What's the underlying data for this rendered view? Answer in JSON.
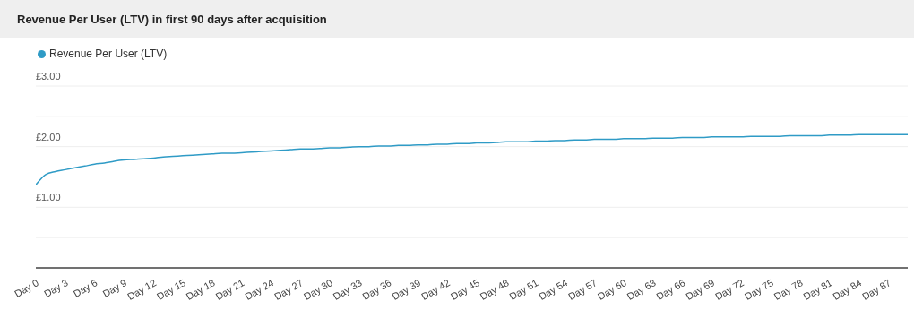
{
  "chart_data": {
    "type": "line",
    "title": "Revenue Per User (LTV) in first 90 days after acquisition",
    "categories": [
      "Day 0",
      null,
      null,
      "Day 3",
      null,
      null,
      "Day 6",
      null,
      null,
      "Day 9",
      null,
      null,
      "Day 12",
      null,
      null,
      "Day 15",
      null,
      null,
      "Day 18",
      null,
      null,
      "Day 21",
      null,
      null,
      "Day 24",
      null,
      null,
      "Day 27",
      null,
      null,
      "Day 30",
      null,
      null,
      "Day 33",
      null,
      null,
      "Day 36",
      null,
      null,
      "Day 39",
      null,
      null,
      "Day 42",
      null,
      null,
      "Day 45",
      null,
      null,
      "Day 48",
      null,
      null,
      "Day 51",
      null,
      null,
      "Day 54",
      null,
      null,
      "Day 57",
      null,
      null,
      "Day 60",
      null,
      null,
      "Day 63",
      null,
      null,
      "Day 66",
      null,
      null,
      "Day 69",
      null,
      null,
      "Day 72",
      null,
      null,
      "Day 75",
      null,
      null,
      "Day 78",
      null,
      null,
      "Day 81",
      null,
      null,
      "Day 84",
      null,
      null,
      "Day 87",
      null,
      null
    ],
    "series": [
      {
        "name": "Revenue Per User (LTV)",
        "color": "#2f9bc6",
        "values": [
          1.37,
          1.54,
          1.59,
          1.62,
          1.65,
          1.68,
          1.71,
          1.73,
          1.76,
          1.78,
          1.79,
          1.8,
          1.81,
          1.83,
          1.84,
          1.85,
          1.86,
          1.87,
          1.88,
          1.89,
          1.89,
          1.9,
          1.91,
          1.92,
          1.93,
          1.94,
          1.95,
          1.96,
          1.96,
          1.97,
          1.98,
          1.98,
          1.99,
          2.0,
          2.0,
          2.01,
          2.01,
          2.02,
          2.02,
          2.03,
          2.03,
          2.04,
          2.04,
          2.05,
          2.05,
          2.06,
          2.06,
          2.07,
          2.08,
          2.08,
          2.08,
          2.09,
          2.09,
          2.1,
          2.1,
          2.11,
          2.11,
          2.12,
          2.12,
          2.12,
          2.13,
          2.13,
          2.13,
          2.14,
          2.14,
          2.14,
          2.15,
          2.15,
          2.15,
          2.16,
          2.16,
          2.16,
          2.16,
          2.17,
          2.17,
          2.17,
          2.17,
          2.18,
          2.18,
          2.18,
          2.18,
          2.19,
          2.19,
          2.19,
          2.2,
          2.2,
          2.2,
          2.2,
          2.2,
          2.2
        ]
      }
    ],
    "ylim": [
      0,
      3
    ],
    "yticks": [
      {
        "value": 0,
        "label": null
      },
      {
        "value": 0.5,
        "label": null
      },
      {
        "value": 1,
        "label": "£1.00"
      },
      {
        "value": 1.5,
        "label": null
      },
      {
        "value": 2,
        "label": "£2.00"
      },
      {
        "value": 2.5,
        "label": null
      },
      {
        "value": 3,
        "label": "£3.00"
      }
    ],
    "grid": "y",
    "legend": "top left"
  }
}
